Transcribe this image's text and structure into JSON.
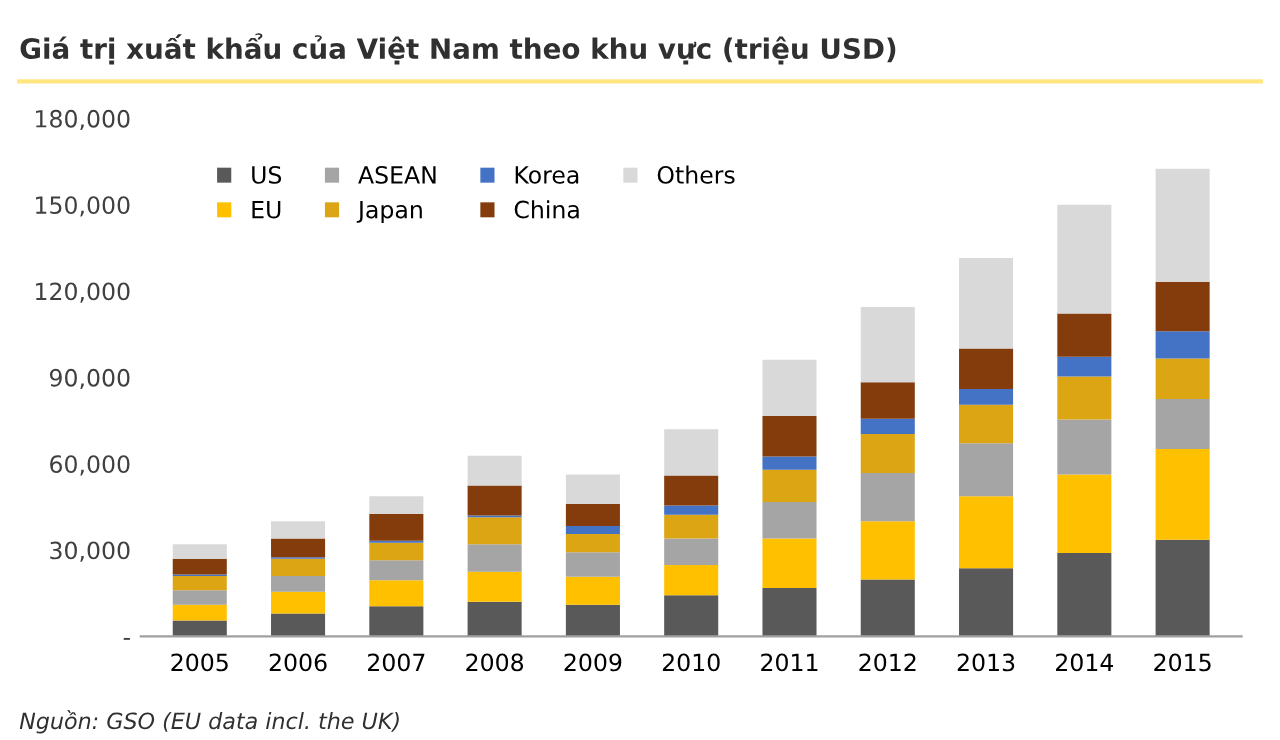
{
  "chart_data": {
    "type": "bar",
    "stacked": true,
    "title": "Giá trị xuất khẩu của Việt Nam theo khu vực (triệu USD)",
    "categories": [
      "2005",
      "2006",
      "2007",
      "2008",
      "2009",
      "2010",
      "2011",
      "2012",
      "2013",
      "2014",
      "2015"
    ],
    "series": [
      {
        "name": "US",
        "color": "#595959",
        "values": [
          5500,
          8000,
          10500,
          12000,
          11000,
          14300,
          16800,
          19800,
          23700,
          29000,
          33600
        ]
      },
      {
        "name": "EU",
        "color": "#ffc000",
        "values": [
          5500,
          7500,
          9000,
          10500,
          9700,
          10500,
          17200,
          20200,
          25000,
          27300,
          31500
        ]
      },
      {
        "name": "ASEAN",
        "color": "#a5a5a5",
        "values": [
          5000,
          5500,
          7000,
          9500,
          8500,
          9200,
          12700,
          16800,
          18400,
          19100,
          17400
        ]
      },
      {
        "name": "Japan",
        "color": "#dba514",
        "values": [
          5000,
          6000,
          6000,
          9400,
          6400,
          8300,
          11200,
          13500,
          13400,
          14900,
          14100
        ]
      },
      {
        "name": "Korea",
        "color": "#4472c4",
        "values": [
          500,
          500,
          700,
          600,
          2800,
          3200,
          4600,
          5300,
          5500,
          6900,
          9400
        ]
      },
      {
        "name": "China",
        "color": "#843c0c",
        "values": [
          5500,
          6500,
          9300,
          10400,
          7600,
          10400,
          14100,
          12700,
          14000,
          15000,
          17200
        ]
      },
      {
        "name": "Others",
        "color": "#d9d9d9",
        "values": [
          5000,
          6000,
          6200,
          10400,
          10300,
          16100,
          19500,
          26200,
          31500,
          37800,
          39300
        ]
      }
    ],
    "ylim": [
      0,
      180000
    ],
    "yticks": [
      {
        "value": 0,
        "label": "-"
      },
      {
        "value": 30000,
        "label": "30,000"
      },
      {
        "value": 60000,
        "label": "60,000"
      },
      {
        "value": 90000,
        "label": "90,000"
      },
      {
        "value": 120000,
        "label": "120,000"
      },
      {
        "value": 150000,
        "label": "150,000"
      },
      {
        "value": 180000,
        "label": "180,000"
      }
    ],
    "legend": "top left",
    "grid": false,
    "annotations": [
      "Nguồn: GSO (EU data incl. the UK)"
    ]
  }
}
